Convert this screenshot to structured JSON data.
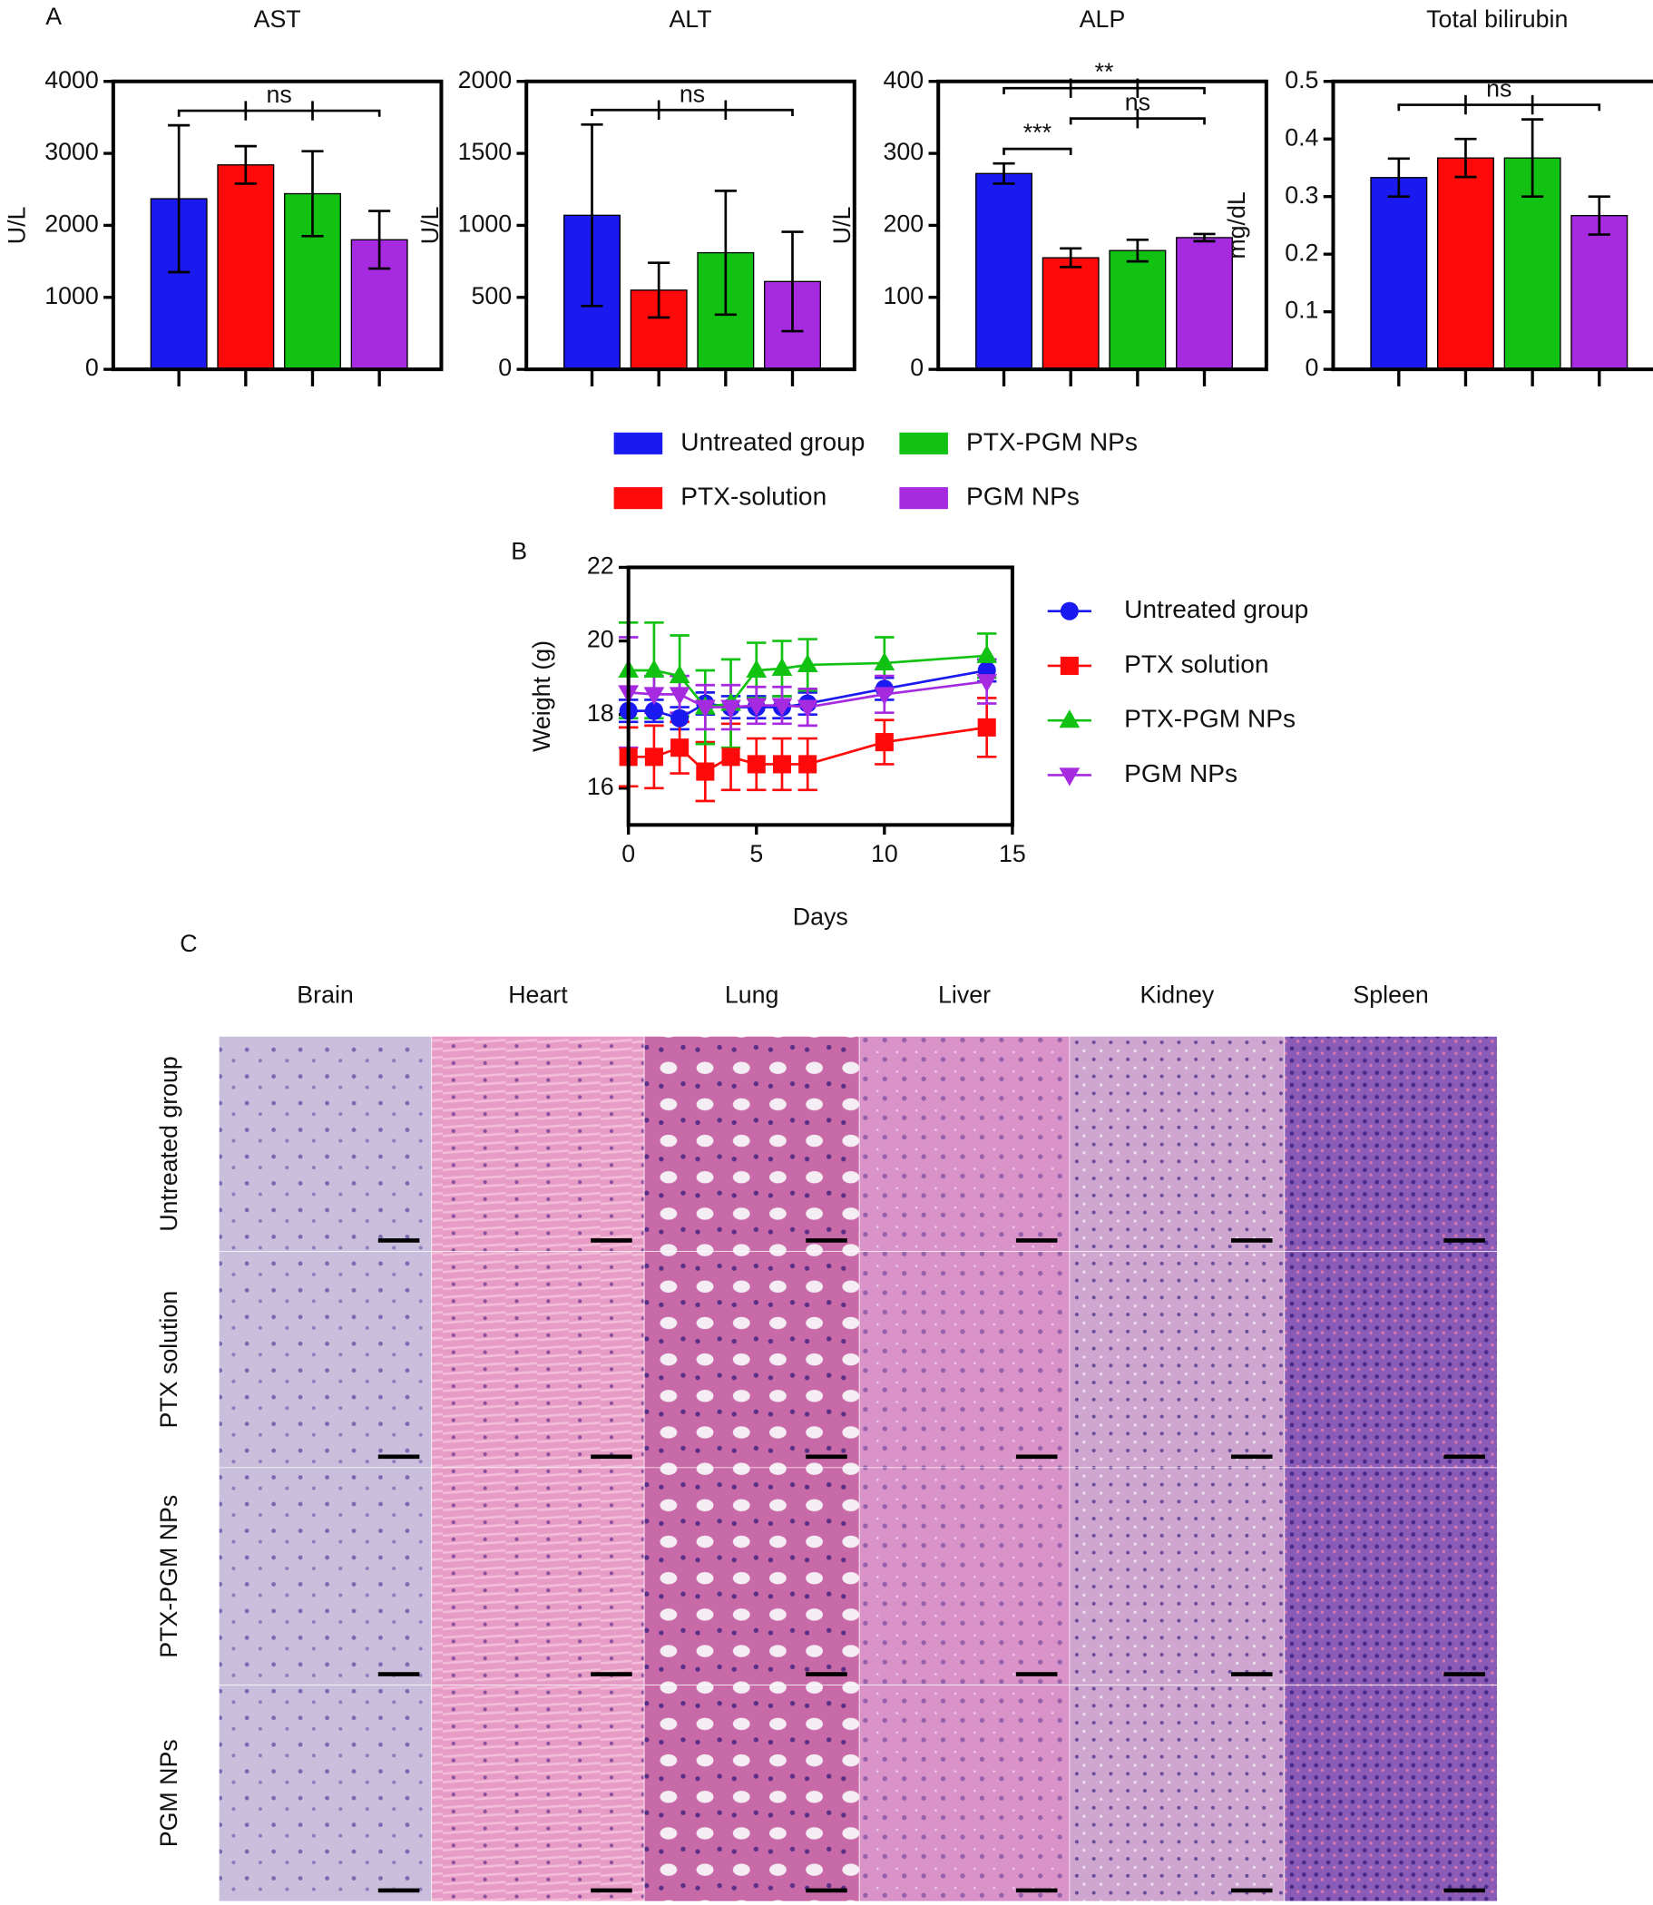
{
  "panels": [
    "A",
    "B",
    "C"
  ],
  "chart_data": [
    {
      "type": "bar",
      "title": "AST",
      "y_label": "U/L",
      "categories": [
        null,
        null,
        null,
        null
      ],
      "values": [
        2370,
        2840,
        2440,
        1800
      ],
      "errors": [
        1020,
        260,
        590,
        400
      ],
      "colors": [
        "#1a1af0",
        "#ff0a0a",
        "#12c212",
        "#a52ae0"
      ],
      "ylim": [
        0,
        4000
      ],
      "yticks": [
        0,
        1000,
        2000,
        3000,
        4000
      ],
      "annotations": [
        {
          "text": "ns",
          "groups": [
            0,
            3
          ]
        }
      ]
    },
    {
      "type": "bar",
      "title": "ALT",
      "y_label": "U/L",
      "categories": [
        null,
        null,
        null,
        null
      ],
      "values": [
        1070,
        550,
        810,
        610
      ],
      "errors": [
        630,
        190,
        430,
        345
      ],
      "colors": [
        "#1a1af0",
        "#ff0a0a",
        "#12c212",
        "#a52ae0"
      ],
      "ylim": [
        0,
        2000
      ],
      "yticks": [
        0,
        500,
        1000,
        1500,
        2000
      ],
      "annotations": [
        {
          "text": "ns",
          "groups": [
            0,
            3
          ]
        }
      ]
    },
    {
      "type": "bar",
      "title": "ALP",
      "y_label": "U/L",
      "categories": [
        null,
        null,
        null,
        null
      ],
      "values": [
        272,
        155,
        165,
        183
      ],
      "errors": [
        14,
        13,
        15,
        5
      ],
      "colors": [
        "#1a1af0",
        "#ff0a0a",
        "#12c212",
        "#a52ae0"
      ],
      "ylim": [
        0,
        400
      ],
      "yticks": [
        0,
        100,
        200,
        300,
        400
      ],
      "annotations": [
        {
          "text": "***",
          "groups": [
            0,
            1
          ]
        },
        {
          "text": "ns",
          "groups": [
            1,
            3
          ]
        },
        {
          "text": "**",
          "groups": [
            0,
            3
          ]
        }
      ]
    },
    {
      "type": "bar",
      "title": "Total bilirubin",
      "y_label": "mg/dL",
      "categories": [
        null,
        null,
        null,
        null
      ],
      "values": [
        0.333,
        0.367,
        0.367,
        0.267
      ],
      "errors": [
        0.033,
        0.033,
        0.067,
        0.033
      ],
      "colors": [
        "#1a1af0",
        "#ff0a0a",
        "#12c212",
        "#a52ae0"
      ],
      "ylim": [
        0,
        0.5
      ],
      "yticks": [
        0,
        0.1,
        0.2,
        0.3,
        0.4,
        0.5
      ],
      "annotations": [
        {
          "text": "ns",
          "groups": [
            0,
            3
          ]
        }
      ]
    },
    {
      "type": "line",
      "x_label": "Days",
      "y_label": "Weight (g)",
      "x": [
        0,
        1,
        2,
        3,
        4,
        5,
        6,
        7,
        10,
        14
      ],
      "xlim": [
        0,
        15
      ],
      "xticks": [
        0,
        5,
        10,
        15
      ],
      "ylim": [
        15,
        22
      ],
      "yticks": [
        16,
        18,
        20,
        22
      ],
      "series": [
        {
          "name": "Untreated group",
          "color": "#1a1af0",
          "marker": "circle",
          "values": [
            18.1,
            18.1,
            17.9,
            18.3,
            18.2,
            18.2,
            18.2,
            18.3,
            18.7,
            19.2
          ],
          "errors": [
            0.3,
            0.3,
            0.3,
            0.3,
            0.3,
            0.3,
            0.3,
            0.3,
            0.3,
            0.3
          ]
        },
        {
          "name": "PTX solution",
          "color": "#ff0a0a",
          "marker": "square",
          "values": [
            16.85,
            16.85,
            17.1,
            16.45,
            16.85,
            16.65,
            16.65,
            16.65,
            17.25,
            17.65
          ],
          "errors": [
            0.8,
            0.85,
            0.7,
            0.8,
            0.9,
            0.7,
            0.7,
            0.7,
            0.6,
            0.8
          ]
        },
        {
          "name": "PTX-PGM NPs",
          "color": "#12c212",
          "marker": "triangle-up",
          "values": [
            19.2,
            19.2,
            19.05,
            18.2,
            18.3,
            19.2,
            19.25,
            19.35,
            19.4,
            19.6
          ],
          "errors": [
            1.3,
            1.3,
            1.1,
            1.0,
            1.2,
            0.75,
            0.75,
            0.7,
            0.7,
            0.6
          ]
        },
        {
          "name": "PGM NPs",
          "color": "#a52ae0",
          "marker": "triangle-down",
          "values": [
            18.6,
            18.55,
            18.55,
            18.2,
            18.2,
            18.25,
            18.25,
            18.2,
            18.55,
            18.9
          ],
          "errors": [
            1.5,
            0.5,
            0.5,
            0.6,
            0.6,
            0.5,
            0.5,
            0.5,
            0.5,
            0.6
          ]
        }
      ]
    }
  ],
  "bar_legend": {
    "series": [
      {
        "name": "Untreated group",
        "color": "#1a1af0"
      },
      {
        "name": "PTX-solution",
        "color": "#ff0a0a"
      },
      {
        "name": "PTX-PGM NPs",
        "color": "#12c212"
      },
      {
        "name": "PGM NPs",
        "color": "#a52ae0"
      }
    ]
  },
  "histology": {
    "columns": [
      "Brain",
      "Heart",
      "Lung",
      "Liver",
      "Kidney",
      "Spleen"
    ],
    "rows": [
      "Untreated group",
      "PTX solution",
      "PTX-PGM NPs",
      "PGM NPs"
    ]
  }
}
